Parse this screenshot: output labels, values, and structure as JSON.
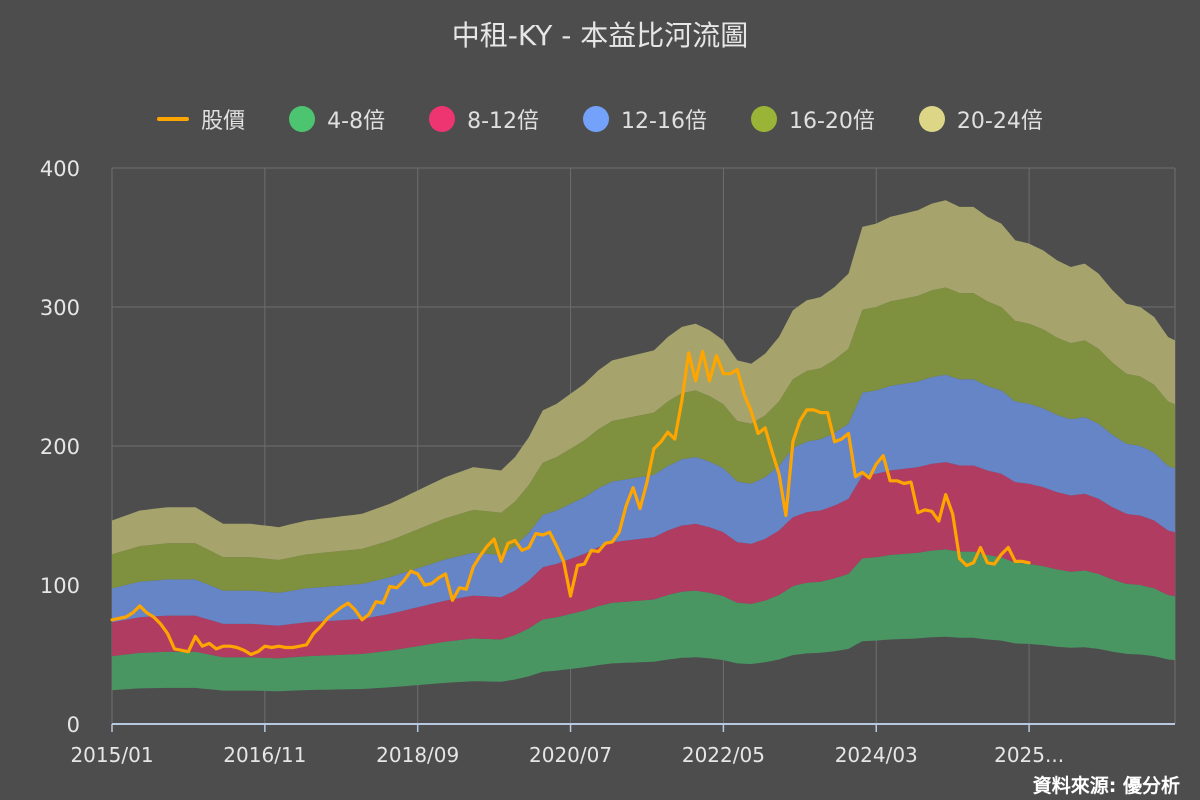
{
  "title": "中租-KY - 本益比河流圖",
  "source": "資料來源: 優分析",
  "colors": {
    "background": "#4d4d4d",
    "grid": "#6e6e6e",
    "axis": "#b8c8e0",
    "price": "#ffa500",
    "band1": "#4a9663",
    "band2": "#b03c62",
    "band3": "#6585c6",
    "band4": "#7f903e",
    "band5": "#a6a46c"
  },
  "legend": [
    {
      "label": "股價",
      "kind": "line",
      "color": "#ffa500"
    },
    {
      "label": "4-8倍",
      "kind": "dot",
      "color": "#4cc470"
    },
    {
      "label": "8-12倍",
      "kind": "dot",
      "color": "#ee3572"
    },
    {
      "label": "12-16倍",
      "kind": "dot",
      "color": "#74a2fa"
    },
    {
      "label": "16-20倍",
      "kind": "dot",
      "color": "#9ab438"
    },
    {
      "label": "20-24倍",
      "kind": "dot",
      "color": "#ddd686"
    }
  ],
  "chart_data": {
    "type": "area",
    "title": "中租-KY - 本益比河流圖",
    "x_start": "2015/01",
    "x_end": "2025/01",
    "x_ticks": [
      "2015/01",
      "2016/11",
      "2018/09",
      "2020/07",
      "2022/05",
      "2024/03",
      "2025..."
    ],
    "y_ticks": [
      0,
      100,
      200,
      300,
      400
    ],
    "ylim": [
      0,
      400
    ],
    "band_multiples": [
      4,
      8,
      12,
      16,
      20,
      24
    ],
    "eps_base": [
      [
        0,
        6.1
      ],
      [
        4,
        6.4
      ],
      [
        8,
        6.5
      ],
      [
        12,
        6.5
      ],
      [
        16,
        6.0
      ],
      [
        20,
        6.0
      ],
      [
        24,
        5.9
      ],
      [
        28,
        6.1
      ],
      [
        32,
        6.2
      ],
      [
        36,
        6.3
      ],
      [
        40,
        6.6
      ],
      [
        44,
        7.0
      ],
      [
        48,
        7.4
      ],
      [
        52,
        7.7
      ],
      [
        56,
        7.6
      ],
      [
        58,
        8.0
      ],
      [
        60,
        8.6
      ],
      [
        62,
        9.4
      ],
      [
        64,
        9.6
      ],
      [
        66,
        9.9
      ],
      [
        68,
        10.2
      ],
      [
        70,
        10.6
      ],
      [
        72,
        10.9
      ],
      [
        74,
        11.0
      ],
      [
        76,
        11.1
      ],
      [
        78,
        11.2
      ],
      [
        80,
        11.6
      ],
      [
        82,
        11.9
      ],
      [
        84,
        12.0
      ],
      [
        86,
        11.8
      ],
      [
        88,
        11.5
      ],
      [
        90,
        10.9
      ],
      [
        92,
        10.8
      ],
      [
        94,
        11.1
      ],
      [
        96,
        11.6
      ],
      [
        98,
        12.4
      ],
      [
        100,
        12.7
      ],
      [
        102,
        12.8
      ],
      [
        104,
        13.1
      ],
      [
        106,
        13.5
      ],
      [
        108,
        14.9
      ],
      [
        110,
        15.0
      ],
      [
        112,
        15.2
      ],
      [
        114,
        15.3
      ],
      [
        116,
        15.4
      ],
      [
        118,
        15.6
      ],
      [
        120,
        15.7
      ],
      [
        122,
        15.5
      ],
      [
        124,
        15.5
      ],
      [
        126,
        15.2
      ],
      [
        128,
        15.0
      ],
      [
        130,
        14.5
      ],
      [
        132,
        14.4
      ],
      [
        134,
        14.2
      ],
      [
        136,
        13.9
      ],
      [
        138,
        13.7
      ],
      [
        140,
        13.8
      ],
      [
        142,
        13.5
      ],
      [
        144,
        13.0
      ],
      [
        146,
        12.6
      ],
      [
        148,
        12.5
      ],
      [
        150,
        12.2
      ],
      [
        152,
        11.6
      ],
      [
        153,
        11.5
      ]
    ],
    "price": [
      [
        0,
        75
      ],
      [
        2,
        77
      ],
      [
        3,
        80
      ],
      [
        4,
        85
      ],
      [
        5,
        80
      ],
      [
        6,
        77
      ],
      [
        7,
        72
      ],
      [
        8,
        65
      ],
      [
        9,
        54
      ],
      [
        10,
        53
      ],
      [
        11,
        52
      ],
      [
        12,
        63
      ],
      [
        13,
        56
      ],
      [
        14,
        58
      ],
      [
        15,
        54
      ],
      [
        16,
        56
      ],
      [
        17,
        56
      ],
      [
        18,
        55
      ],
      [
        19,
        53
      ],
      [
        20,
        50
      ],
      [
        21,
        52
      ],
      [
        22,
        56
      ],
      [
        23,
        55
      ],
      [
        24,
        56
      ],
      [
        25,
        55
      ],
      [
        26,
        55
      ],
      [
        27,
        56
      ],
      [
        28,
        57
      ],
      [
        29,
        65
      ],
      [
        30,
        70
      ],
      [
        31,
        76
      ],
      [
        32,
        80
      ],
      [
        33,
        84
      ],
      [
        34,
        87
      ],
      [
        35,
        82
      ],
      [
        36,
        75
      ],
      [
        37,
        79
      ],
      [
        38,
        88
      ],
      [
        39,
        87
      ],
      [
        40,
        99
      ],
      [
        41,
        98
      ],
      [
        42,
        103
      ],
      [
        43,
        110
      ],
      [
        44,
        108
      ],
      [
        45,
        100
      ],
      [
        46,
        101
      ],
      [
        47,
        105
      ],
      [
        48,
        108
      ],
      [
        49,
        89
      ],
      [
        50,
        98
      ],
      [
        51,
        97
      ],
      [
        52,
        113
      ],
      [
        53,
        121
      ],
      [
        54,
        128
      ],
      [
        55,
        133
      ],
      [
        56,
        117
      ],
      [
        57,
        130
      ],
      [
        58,
        132
      ],
      [
        59,
        125
      ],
      [
        60,
        127
      ],
      [
        61,
        137
      ],
      [
        62,
        136
      ],
      [
        63,
        138
      ],
      [
        64,
        128
      ],
      [
        65,
        117
      ],
      [
        66,
        92
      ],
      [
        67,
        114
      ],
      [
        68,
        115
      ],
      [
        69,
        125
      ],
      [
        70,
        124
      ],
      [
        71,
        130
      ],
      [
        72,
        131
      ],
      [
        73,
        138
      ],
      [
        74,
        157
      ],
      [
        75,
        170
      ],
      [
        76,
        155
      ],
      [
        77,
        174
      ],
      [
        78,
        198
      ],
      [
        79,
        203
      ],
      [
        80,
        210
      ],
      [
        81,
        205
      ],
      [
        82,
        232
      ],
      [
        83,
        267
      ],
      [
        84,
        247
      ],
      [
        85,
        268
      ],
      [
        86,
        247
      ],
      [
        87,
        265
      ],
      [
        88,
        252
      ],
      [
        89,
        252
      ],
      [
        90,
        255
      ],
      [
        91,
        237
      ],
      [
        92,
        225
      ],
      [
        93,
        209
      ],
      [
        94,
        213
      ],
      [
        95,
        196
      ],
      [
        96,
        180
      ],
      [
        97,
        150
      ],
      [
        98,
        203
      ],
      [
        99,
        218
      ],
      [
        100,
        226
      ],
      [
        101,
        226
      ],
      [
        102,
        224
      ],
      [
        103,
        224
      ],
      [
        104,
        203
      ],
      [
        105,
        205
      ],
      [
        106,
        209
      ],
      [
        107,
        178
      ],
      [
        108,
        181
      ],
      [
        109,
        177
      ],
      [
        110,
        187
      ],
      [
        111,
        193
      ],
      [
        112,
        175
      ],
      [
        113,
        175
      ],
      [
        114,
        173
      ],
      [
        115,
        174
      ],
      [
        116,
        152
      ],
      [
        117,
        154
      ],
      [
        118,
        153
      ],
      [
        119,
        146
      ],
      [
        120,
        165
      ],
      [
        121,
        151
      ],
      [
        122,
        119
      ],
      [
        123,
        114
      ],
      [
        124,
        116
      ],
      [
        125,
        127
      ],
      [
        126,
        116
      ],
      [
        127,
        115
      ],
      [
        128,
        122
      ],
      [
        129,
        127
      ],
      [
        130,
        117
      ],
      [
        131,
        117
      ],
      [
        132,
        116
      ]
    ]
  }
}
